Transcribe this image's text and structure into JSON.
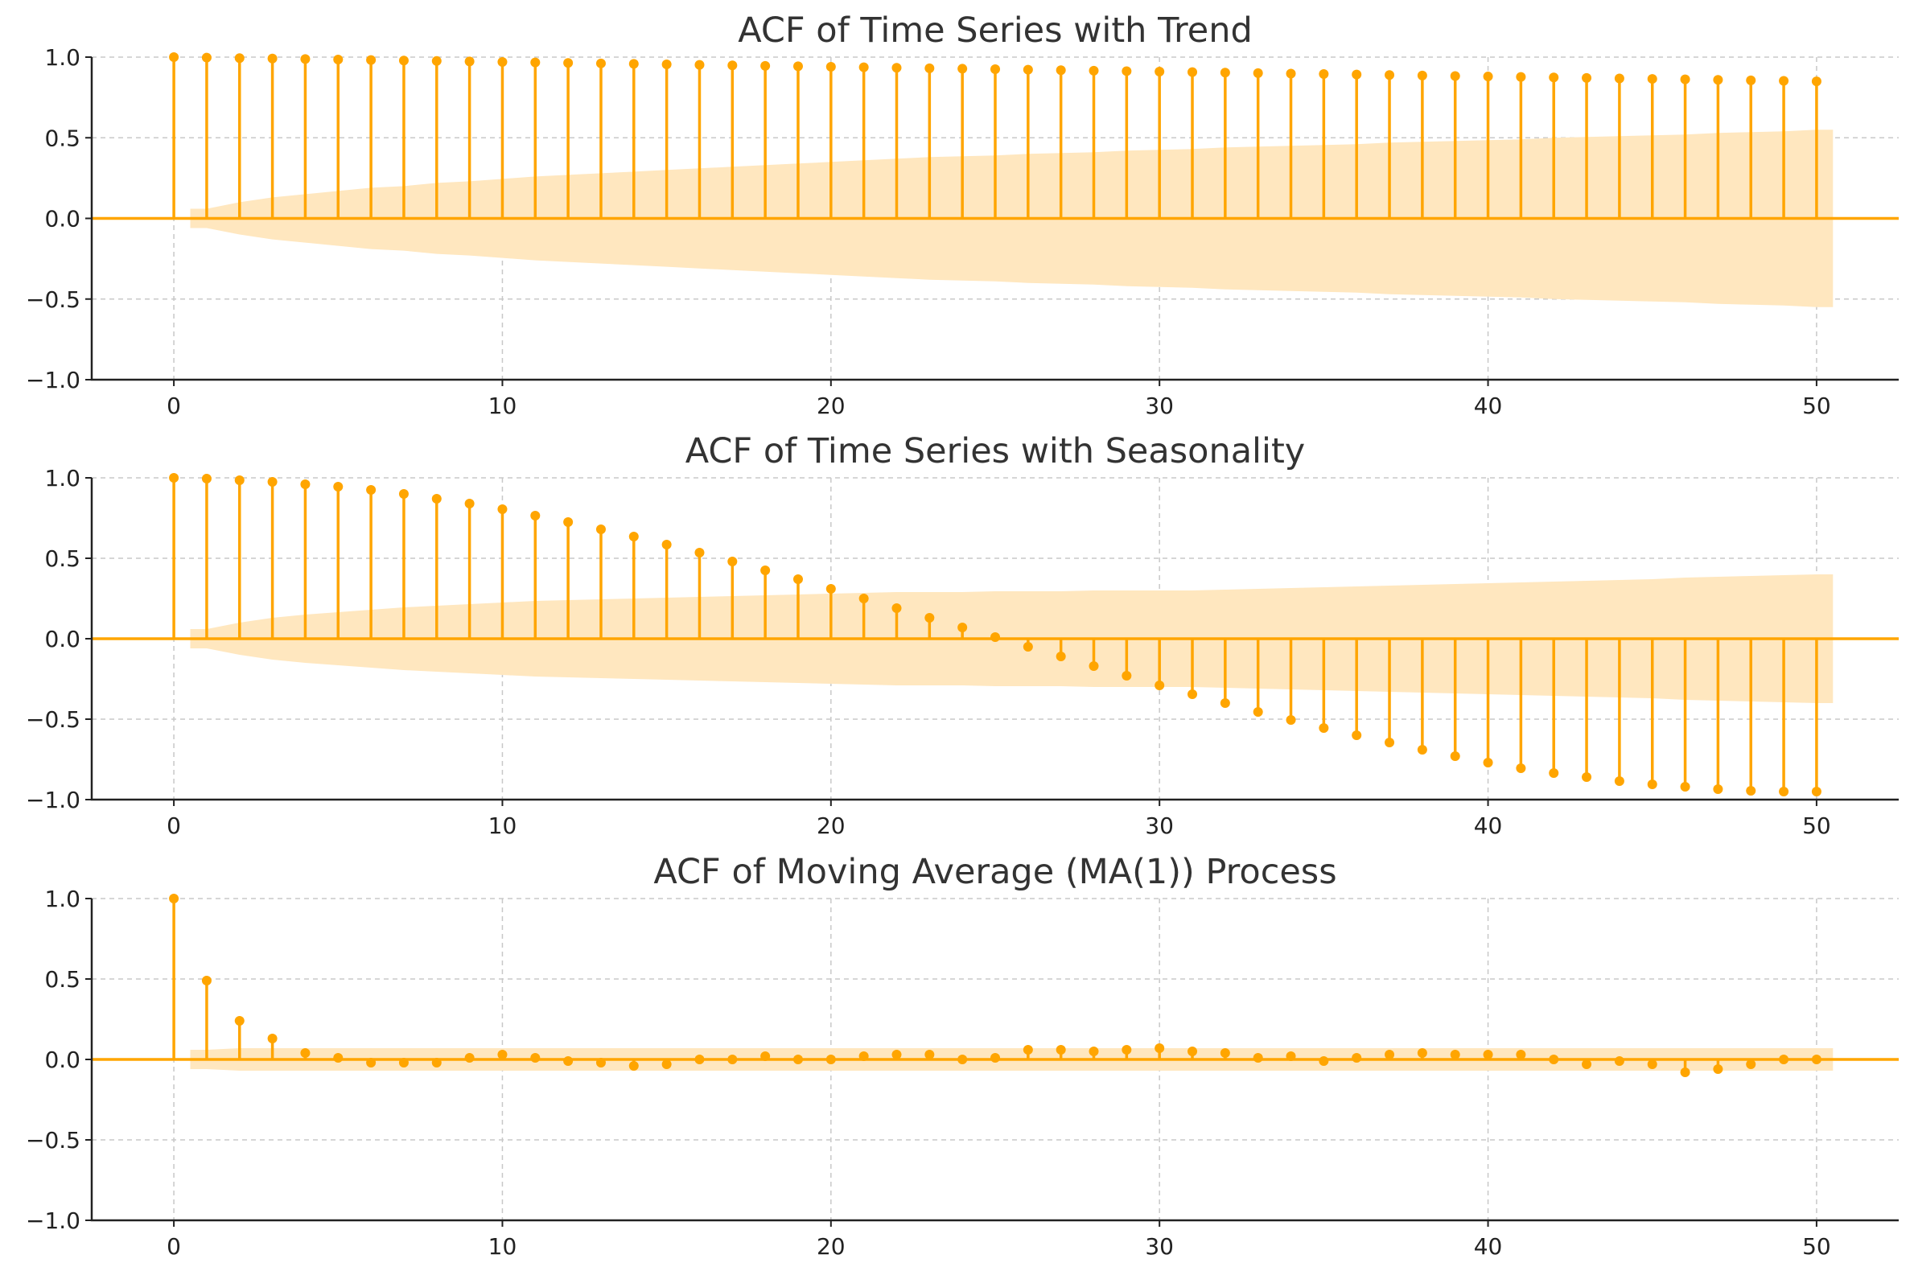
{
  "colors": {
    "accent": "#FFA500",
    "band": "#FFE7BF"
  },
  "chart_data": [
    {
      "type": "stem",
      "title": "ACF of Time Series with Trend",
      "xlabel": "",
      "ylabel": "",
      "xlim": [
        -2.5,
        52.5
      ],
      "ylim": [
        -1.0,
        1.0
      ],
      "xticks": [
        0,
        10,
        20,
        30,
        40,
        50
      ],
      "xtick_labels": [
        "0",
        "10",
        "20",
        "30",
        "40",
        "50"
      ],
      "yticks": [
        1.0,
        0.5,
        0.0,
        -0.5,
        -1.0
      ],
      "ytick_labels": [
        "1.0",
        "0.5",
        "0.0",
        "−0.5",
        "−1.0"
      ],
      "grid": true,
      "lags": [
        0,
        1,
        2,
        3,
        4,
        5,
        6,
        7,
        8,
        9,
        10,
        11,
        12,
        13,
        14,
        15,
        16,
        17,
        18,
        19,
        20,
        21,
        22,
        23,
        24,
        25,
        26,
        27,
        28,
        29,
        30,
        31,
        32,
        33,
        34,
        35,
        36,
        37,
        38,
        39,
        40,
        41,
        42,
        43,
        44,
        45,
        46,
        47,
        48,
        49,
        50
      ],
      "values": [
        1.0,
        0.997,
        0.994,
        0.991,
        0.988,
        0.985,
        0.982,
        0.979,
        0.976,
        0.973,
        0.97,
        0.967,
        0.964,
        0.961,
        0.958,
        0.955,
        0.952,
        0.949,
        0.946,
        0.943,
        0.94,
        0.937,
        0.934,
        0.931,
        0.928,
        0.925,
        0.922,
        0.919,
        0.916,
        0.913,
        0.91,
        0.907,
        0.904,
        0.901,
        0.898,
        0.895,
        0.892,
        0.889,
        0.886,
        0.883,
        0.88,
        0.877,
        0.874,
        0.871,
        0.868,
        0.865,
        0.862,
        0.859,
        0.856,
        0.853,
        0.85
      ],
      "confidence_band": [
        0.06,
        0.1,
        0.13,
        0.15,
        0.17,
        0.19,
        0.2,
        0.22,
        0.23,
        0.245,
        0.26,
        0.27,
        0.28,
        0.29,
        0.3,
        0.31,
        0.32,
        0.33,
        0.34,
        0.35,
        0.36,
        0.37,
        0.38,
        0.385,
        0.39,
        0.4,
        0.405,
        0.41,
        0.42,
        0.425,
        0.43,
        0.44,
        0.445,
        0.45,
        0.455,
        0.46,
        0.47,
        0.475,
        0.48,
        0.485,
        0.49,
        0.5,
        0.505,
        0.51,
        0.515,
        0.52,
        0.53,
        0.535,
        0.54,
        0.55
      ]
    },
    {
      "type": "stem",
      "title": "ACF of Time Series with Seasonality",
      "xlabel": "",
      "ylabel": "",
      "xlim": [
        -2.5,
        52.5
      ],
      "ylim": [
        -1.0,
        1.0
      ],
      "xticks": [
        0,
        10,
        20,
        30,
        40,
        50
      ],
      "xtick_labels": [
        "0",
        "10",
        "20",
        "30",
        "40",
        "50"
      ],
      "yticks": [
        1.0,
        0.5,
        0.0,
        -0.5,
        -1.0
      ],
      "ytick_labels": [
        "1.0",
        "0.5",
        "0.0",
        "−0.5",
        "−1.0"
      ],
      "grid": true,
      "lags": [
        0,
        1,
        2,
        3,
        4,
        5,
        6,
        7,
        8,
        9,
        10,
        11,
        12,
        13,
        14,
        15,
        16,
        17,
        18,
        19,
        20,
        21,
        22,
        23,
        24,
        25,
        26,
        27,
        28,
        29,
        30,
        31,
        32,
        33,
        34,
        35,
        36,
        37,
        38,
        39,
        40,
        41,
        42,
        43,
        44,
        45,
        46,
        47,
        48,
        49,
        50
      ],
      "values": [
        1.0,
        0.995,
        0.985,
        0.975,
        0.96,
        0.945,
        0.925,
        0.9,
        0.87,
        0.84,
        0.805,
        0.765,
        0.725,
        0.68,
        0.635,
        0.585,
        0.535,
        0.48,
        0.425,
        0.37,
        0.31,
        0.25,
        0.19,
        0.13,
        0.07,
        0.01,
        -0.05,
        -0.11,
        -0.17,
        -0.23,
        -0.29,
        -0.345,
        -0.4,
        -0.455,
        -0.505,
        -0.555,
        -0.6,
        -0.645,
        -0.69,
        -0.73,
        -0.77,
        -0.805,
        -0.835,
        -0.86,
        -0.885,
        -0.905,
        -0.92,
        -0.935,
        -0.945,
        -0.95,
        -0.95
      ],
      "confidence_band": [
        0.06,
        0.1,
        0.13,
        0.15,
        0.165,
        0.18,
        0.195,
        0.205,
        0.215,
        0.225,
        0.235,
        0.24,
        0.245,
        0.25,
        0.255,
        0.26,
        0.265,
        0.27,
        0.275,
        0.28,
        0.285,
        0.29,
        0.29,
        0.29,
        0.295,
        0.295,
        0.295,
        0.3,
        0.3,
        0.3,
        0.3,
        0.305,
        0.31,
        0.315,
        0.32,
        0.325,
        0.33,
        0.335,
        0.34,
        0.345,
        0.35,
        0.355,
        0.36,
        0.365,
        0.37,
        0.38,
        0.385,
        0.39,
        0.395,
        0.4
      ]
    },
    {
      "type": "stem",
      "title": "ACF of Moving Average (MA(1)) Process",
      "xlabel": "",
      "ylabel": "",
      "xlim": [
        -2.5,
        52.5
      ],
      "ylim": [
        -1.0,
        1.0
      ],
      "xticks": [
        0,
        10,
        20,
        30,
        40,
        50
      ],
      "xtick_labels": [
        "0",
        "10",
        "20",
        "30",
        "40",
        "50"
      ],
      "yticks": [
        1.0,
        0.5,
        0.0,
        -0.5,
        -1.0
      ],
      "ytick_labels": [
        "1.0",
        "0.5",
        "0.0",
        "−0.5",
        "−1.0"
      ],
      "grid": true,
      "lags": [
        0,
        1,
        2,
        3,
        4,
        5,
        6,
        7,
        8,
        9,
        10,
        11,
        12,
        13,
        14,
        15,
        16,
        17,
        18,
        19,
        20,
        21,
        22,
        23,
        24,
        25,
        26,
        27,
        28,
        29,
        30,
        31,
        32,
        33,
        34,
        35,
        36,
        37,
        38,
        39,
        40,
        41,
        42,
        43,
        44,
        45,
        46,
        47,
        48,
        49,
        50
      ],
      "values": [
        1.0,
        0.49,
        0.24,
        0.13,
        0.04,
        0.01,
        -0.02,
        -0.02,
        -0.02,
        0.01,
        0.03,
        0.01,
        -0.01,
        -0.02,
        -0.04,
        -0.03,
        0.0,
        0.0,
        0.02,
        0.0,
        0.0,
        0.02,
        0.03,
        0.03,
        0.0,
        0.01,
        0.06,
        0.06,
        0.05,
        0.06,
        0.07,
        0.05,
        0.04,
        0.01,
        0.02,
        -0.01,
        0.01,
        0.03,
        0.04,
        0.03,
        0.03,
        0.03,
        0.0,
        -0.03,
        -0.01,
        -0.03,
        -0.08,
        -0.06,
        -0.03,
        0.0,
        0.0
      ],
      "confidence_band": [
        0.06,
        0.07,
        0.07,
        0.07,
        0.07,
        0.07,
        0.07,
        0.07,
        0.07,
        0.07,
        0.07,
        0.07,
        0.07,
        0.07,
        0.07,
        0.07,
        0.07,
        0.07,
        0.07,
        0.07,
        0.07,
        0.07,
        0.07,
        0.07,
        0.07,
        0.07,
        0.07,
        0.07,
        0.07,
        0.07,
        0.07,
        0.07,
        0.07,
        0.07,
        0.07,
        0.07,
        0.07,
        0.07,
        0.07,
        0.07,
        0.07,
        0.07,
        0.07,
        0.07,
        0.07,
        0.07,
        0.07,
        0.07,
        0.07,
        0.07
      ]
    }
  ]
}
